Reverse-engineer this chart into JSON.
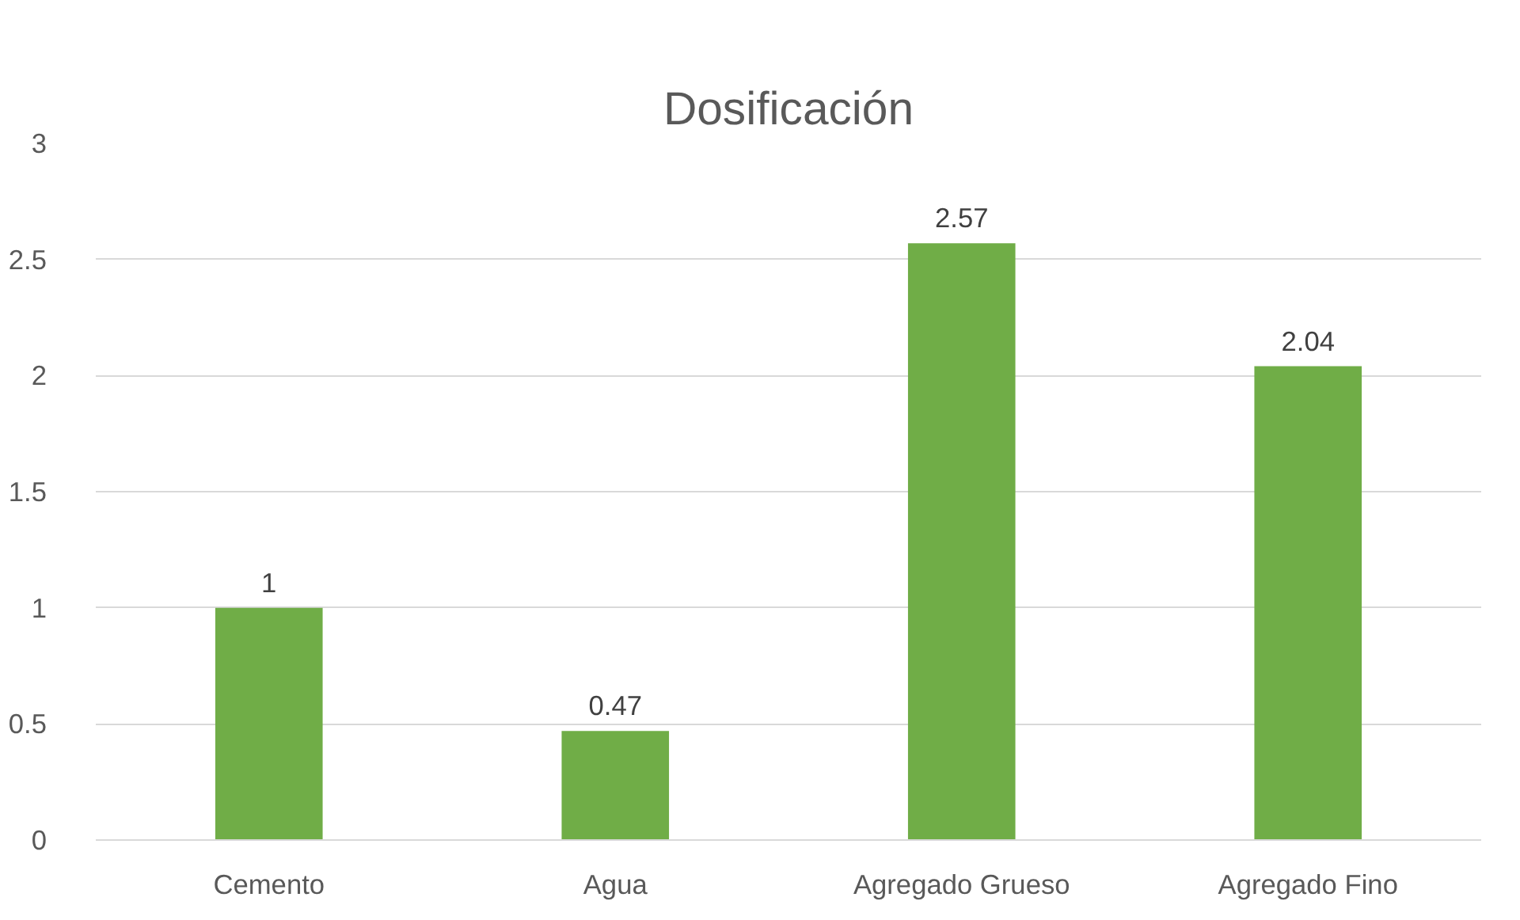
{
  "chart_data": {
    "type": "bar",
    "title": "Dosificación",
    "categories": [
      "Cemento",
      "Agua",
      "Agregado Grueso",
      "Agregado Fino"
    ],
    "values": [
      1,
      0.47,
      2.57,
      2.04
    ],
    "color": "#70ad47",
    "ylim": [
      0,
      3
    ],
    "yticks": [
      0,
      0.5,
      1,
      1.5,
      2,
      2.5,
      3
    ],
    "grid": "y",
    "data_labels": true
  }
}
